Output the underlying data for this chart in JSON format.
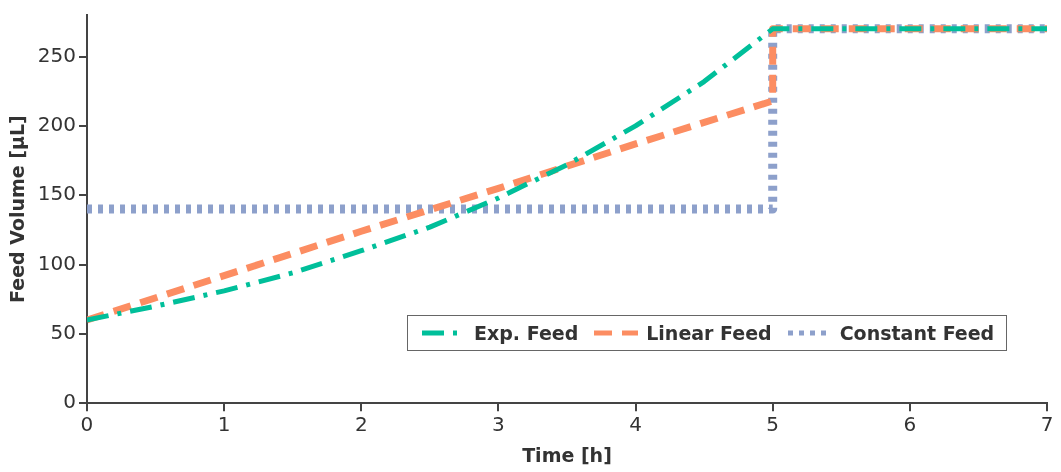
{
  "chart_data": {
    "type": "line",
    "xlabel": "Time [h]",
    "ylabel": "Feed Volume [µL]",
    "xlim": [
      0,
      7
    ],
    "xticks": [
      0,
      1,
      2,
      3,
      4,
      5,
      6,
      7
    ],
    "ylim": [
      0,
      280
    ],
    "yticks": [
      0,
      50,
      100,
      150,
      200,
      250
    ],
    "grid": false,
    "legend": "bottom right",
    "marker": "none",
    "series": [
      {
        "name": "Exp. Feed",
        "color": "#00bf9a",
        "line_style": "dashdot",
        "x": [
          0,
          0.5,
          1,
          1.5,
          2,
          2.5,
          3,
          3.5,
          4,
          4.5,
          5,
          7
        ],
        "values": [
          60,
          70,
          81,
          94,
          110,
          127,
          148,
          172,
          200,
          232,
          270,
          270
        ]
      },
      {
        "name": "Linear Feed",
        "color": "#fc8d62",
        "line_style": "dashed",
        "x": [
          0,
          1,
          2,
          3,
          4,
          5,
          5,
          7
        ],
        "values": [
          60,
          92,
          124,
          155,
          187,
          218,
          270,
          270
        ]
      },
      {
        "name": "Constant Feed",
        "color": "#8da0cb",
        "line_style": "dotted",
        "x": [
          0,
          5,
          5,
          7
        ],
        "values": [
          140,
          140,
          270,
          270
        ]
      }
    ]
  }
}
